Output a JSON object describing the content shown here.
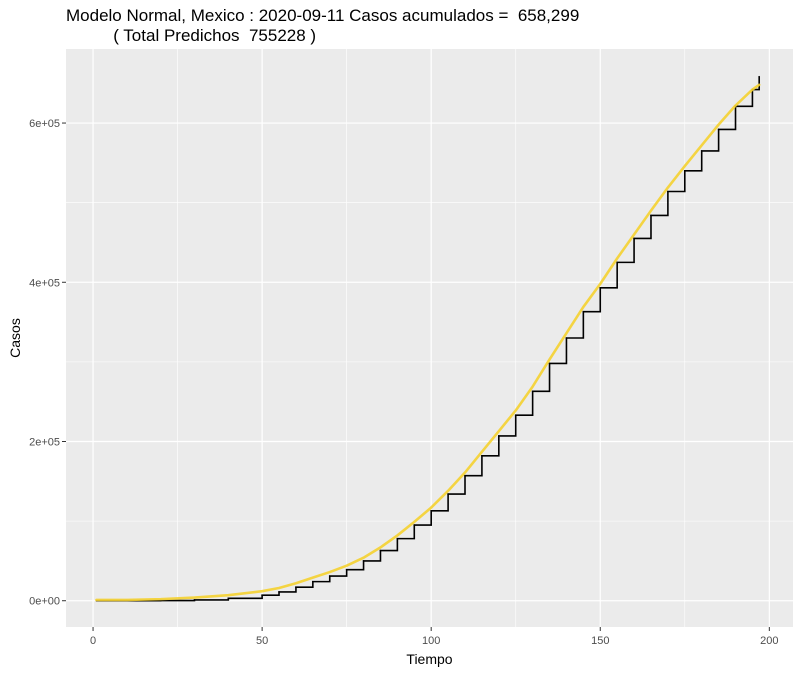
{
  "title": {
    "line1": "Modelo Normal, Mexico : 2020-09-11 Casos acumulados =  658,299",
    "line2": "          ( Total Predichos  755228 )"
  },
  "chart_data": {
    "type": "line",
    "xlabel": "Tiempo",
    "ylabel": "Casos",
    "xlim": [
      -8,
      207
    ],
    "ylim": [
      -33000,
      693000
    ],
    "x_ticks": [
      0,
      50,
      100,
      150,
      200
    ],
    "x_tick_labels": [
      "0",
      "50",
      "100",
      "150",
      "200"
    ],
    "y_ticks": [
      0,
      200000,
      400000,
      600000
    ],
    "y_tick_labels": [
      "0e+00",
      "2e+05",
      "4e+05",
      "6e+05"
    ],
    "grid": true,
    "legend": "none",
    "colors": {
      "panel_background": "#ebebeb",
      "grid": "#ffffff",
      "observed": "#000000",
      "predicted": "#f5d130"
    },
    "series": [
      {
        "style": "step",
        "color": "#000000",
        "x": [
          1,
          10,
          20,
          30,
          40,
          50,
          55,
          60,
          65,
          70,
          75,
          80,
          85,
          90,
          95,
          100,
          105,
          110,
          115,
          120,
          125,
          130,
          135,
          140,
          145,
          150,
          155,
          160,
          165,
          170,
          175,
          180,
          185,
          190,
          195,
          197
        ],
        "values": [
          0,
          0,
          200,
          1000,
          3000,
          7000,
          11000,
          17000,
          24000,
          31000,
          39000,
          50000,
          63000,
          78000,
          95000,
          113000,
          134000,
          157000,
          182000,
          207000,
          233000,
          263000,
          298000,
          330000,
          363000,
          393000,
          425000,
          455000,
          484000,
          514000,
          540000,
          565000,
          592000,
          621000,
          642000,
          658299
        ]
      },
      {
        "style": "line",
        "color": "#f5d130",
        "x": [
          1,
          10,
          20,
          30,
          40,
          50,
          55,
          60,
          65,
          70,
          75,
          80,
          85,
          90,
          95,
          100,
          105,
          110,
          115,
          120,
          125,
          130,
          135,
          140,
          145,
          150,
          155,
          160,
          165,
          170,
          175,
          180,
          185,
          190,
          195,
          197
        ],
        "values": [
          1000,
          1000,
          2000,
          4000,
          7000,
          12000,
          16000,
          22000,
          29000,
          36000,
          44000,
          54000,
          67000,
          82000,
          99000,
          117000,
          138000,
          161000,
          187000,
          213000,
          239000,
          269000,
          303000,
          336000,
          369000,
          398000,
          430000,
          460000,
          490000,
          519000,
          546000,
          572000,
          598000,
          622000,
          642000,
          648000
        ]
      }
    ]
  }
}
